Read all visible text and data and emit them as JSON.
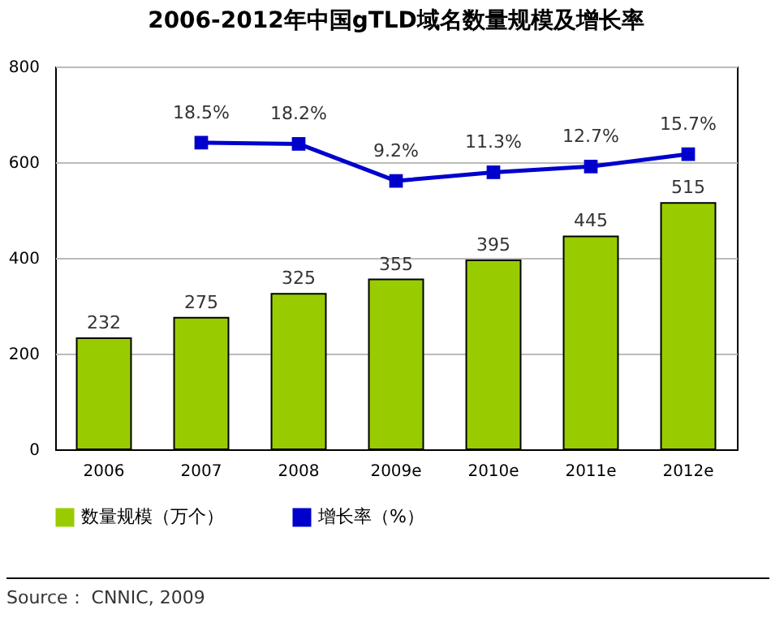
{
  "chart_data": {
    "type": "bar",
    "title": "2006-2012年中国gTLD域名数量规模及增长率",
    "categories": [
      "2006",
      "2007",
      "2008",
      "2009e",
      "2010e",
      "2011e",
      "2012e"
    ],
    "series": [
      {
        "name": "数量规模（万个）",
        "color": "#99cc00",
        "values": [
          232,
          275,
          325,
          355,
          395,
          445,
          515
        ]
      },
      {
        "name": "增长率（%）",
        "type": "line",
        "color": "#0000cc",
        "marker": "square",
        "axis": "y2",
        "values": [
          null,
          18.5,
          18.2,
          9.2,
          11.3,
          12.7,
          15.7
        ],
        "value_labels": [
          null,
          "18.5%",
          "18.2%",
          "9.2%",
          "11.3%",
          "12.7%",
          "15.7%"
        ]
      }
    ],
    "data_labels": true,
    "y2lim": [
      -56,
      37
    ],
    "ylim": [
      0,
      800
    ],
    "yticks": [
      0,
      200,
      400,
      600,
      800
    ],
    "grid": "y",
    "legend": "bottom",
    "annotations": [
      "Source： CNNIC, 2009"
    ]
  }
}
